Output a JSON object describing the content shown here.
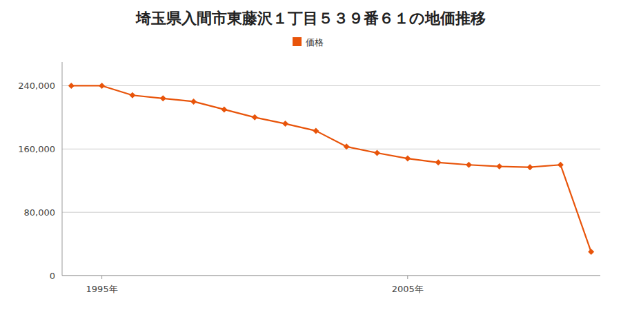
{
  "chart_data": {
    "type": "line",
    "title": "埼玉県入間市東藤沢１丁目５３９番６１の地価推移",
    "x": [
      1994,
      1995,
      1996,
      1997,
      1998,
      1999,
      2000,
      2001,
      2002,
      2003,
      2004,
      2005,
      2006,
      2007,
      2008,
      2009,
      2010,
      2011
    ],
    "series": [
      {
        "name": "価格",
        "color": "#e8540a",
        "values": [
          240000,
          240000,
          228000,
          224000,
          220000,
          210000,
          200000,
          192000,
          183000,
          163000,
          155000,
          148000,
          143000,
          140000,
          138000,
          137000,
          140000,
          30000
        ]
      }
    ],
    "xlim": [
      1993.7,
      2011.3
    ],
    "xticks": [
      {
        "value": 1995,
        "label": "1995年"
      },
      {
        "value": 2005,
        "label": "2005年"
      }
    ],
    "ylim": [
      0,
      270000
    ],
    "yticks": [
      0,
      {
        "value": 80000,
        "label": "80,000"
      },
      {
        "value": 160000,
        "label": "160,000"
      },
      {
        "value": 240000,
        "label": "240,000"
      }
    ],
    "grid": true,
    "legend": "top",
    "marker": "diamond"
  }
}
